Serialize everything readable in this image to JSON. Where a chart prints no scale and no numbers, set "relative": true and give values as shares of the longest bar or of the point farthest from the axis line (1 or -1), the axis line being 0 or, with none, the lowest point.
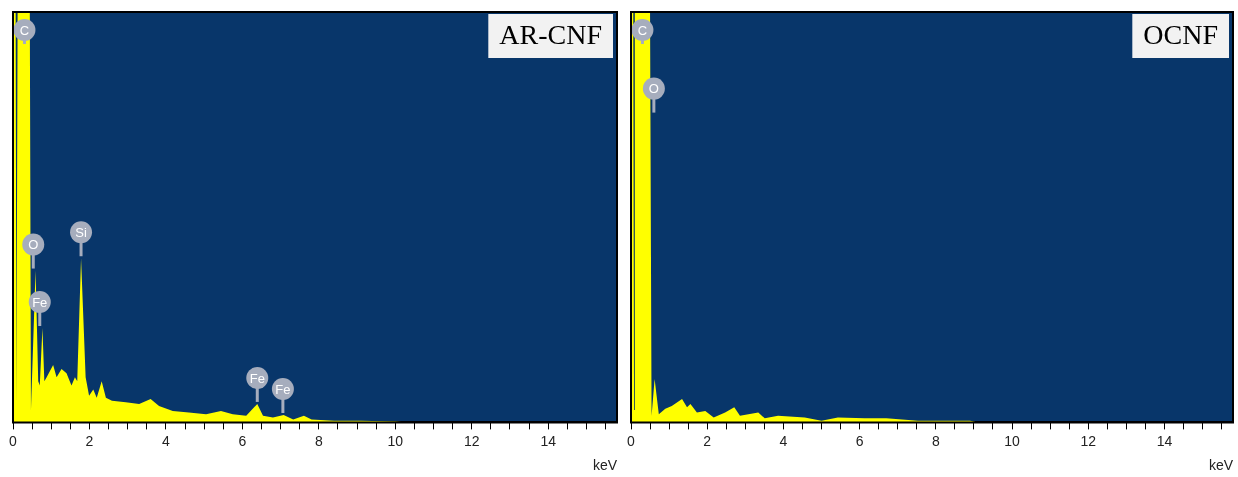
{
  "chart_data": [
    {
      "type": "area",
      "title": "AR-CNF",
      "xlabel": "keV",
      "relative": true,
      "legend": false,
      "grid": false,
      "xlim": [
        0,
        15.8
      ],
      "xticks": [
        0,
        {
          "value": 0.5,
          "label": null
        },
        {
          "value": 1,
          "label": null
        },
        {
          "value": 1.5,
          "label": null
        },
        2,
        {
          "value": 2.5,
          "label": null
        },
        {
          "value": 3,
          "label": null
        },
        {
          "value": 3.5,
          "label": null
        },
        4,
        {
          "value": 4.5,
          "label": null
        },
        {
          "value": 5,
          "label": null
        },
        {
          "value": 5.5,
          "label": null
        },
        6,
        {
          "value": 6.5,
          "label": null
        },
        {
          "value": 7,
          "label": null
        },
        {
          "value": 7.5,
          "label": null
        },
        8,
        {
          "value": 8.5,
          "label": null
        },
        {
          "value": 9,
          "label": null
        },
        {
          "value": 9.5,
          "label": null
        },
        10,
        {
          "value": 10.5,
          "label": null
        },
        {
          "value": 11,
          "label": null
        },
        {
          "value": 11.5,
          "label": null
        },
        12,
        {
          "value": 12.5,
          "label": null
        },
        {
          "value": 13,
          "label": null
        },
        {
          "value": 13.5,
          "label": null
        },
        14,
        {
          "value": 14.5,
          "label": null
        },
        {
          "value": 15,
          "label": null
        },
        {
          "value": 15.5,
          "label": null
        }
      ],
      "series": [
        {
          "color": "#ffff00",
          "x": [
            0,
            0.02,
            0.04,
            0.07,
            0.09,
            0.12,
            0.21,
            0.44,
            0.47,
            0.59,
            0.66,
            0.7,
            0.77,
            0.82,
            0.88,
            1.05,
            1.14,
            1.27,
            1.4,
            1.53,
            1.62,
            1.68,
            1.78,
            1.9,
            1.99,
            2.1,
            2.19,
            2.32,
            2.43,
            2.59,
            2.95,
            3.3,
            3.6,
            3.82,
            4.18,
            4.6,
            5.05,
            5.44,
            5.75,
            6.1,
            6.39,
            6.54,
            6.8,
            7.08,
            7.33,
            7.61,
            7.81,
            8.4,
            9.1,
            10,
            10.3,
            15.8
          ],
          "values": [
            0,
            1,
            1,
            1,
            0.05,
            1,
            1,
            1,
            0.03,
            0.37,
            0.1,
            0.09,
            0.23,
            0.1,
            0.11,
            0.14,
            0.11,
            0.13,
            0.12,
            0.09,
            0.11,
            0.1,
            0.4,
            0.11,
            0.065,
            0.08,
            0.06,
            0.1,
            0.06,
            0.053,
            0.049,
            0.045,
            0.057,
            0.04,
            0.028,
            0.024,
            0.02,
            0.028,
            0.02,
            0.016,
            0.045,
            0.016,
            0.012,
            0.018,
            0.007,
            0.016,
            0.007,
            0.004,
            0.004,
            0.002,
            0,
            0
          ]
        }
      ],
      "annotations": [
        {
          "text": "C",
          "x": 0.3,
          "y": 1
        },
        {
          "text": "O",
          "x": 0.53,
          "y": 0.37
        },
        {
          "text": "Fe",
          "x": 0.7,
          "y": 0.23
        },
        {
          "text": "Si",
          "x": 1.78,
          "y": 0.4
        },
        {
          "text": "Fe",
          "x": 6.39,
          "y": 0.045
        },
        {
          "text": "Fe",
          "x": 7.06,
          "y": 0.018
        }
      ]
    },
    {
      "type": "area",
      "title": "OCNF",
      "xlabel": "keV",
      "relative": true,
      "legend": false,
      "grid": false,
      "xlim": [
        0,
        15.8
      ],
      "xticks": [
        0,
        {
          "value": 0.5,
          "label": null
        },
        {
          "value": 1,
          "label": null
        },
        {
          "value": 1.5,
          "label": null
        },
        2,
        {
          "value": 2.5,
          "label": null
        },
        {
          "value": 3,
          "label": null
        },
        {
          "value": 3.5,
          "label": null
        },
        4,
        {
          "value": 4.5,
          "label": null
        },
        {
          "value": 5,
          "label": null
        },
        {
          "value": 5.5,
          "label": null
        },
        6,
        {
          "value": 6.5,
          "label": null
        },
        {
          "value": 7,
          "label": null
        },
        {
          "value": 7.5,
          "label": null
        },
        8,
        {
          "value": 8.5,
          "label": null
        },
        {
          "value": 9,
          "label": null
        },
        {
          "value": 9.5,
          "label": null
        },
        10,
        {
          "value": 10.5,
          "label": null
        },
        {
          "value": 11,
          "label": null
        },
        {
          "value": 11.5,
          "label": null
        },
        12,
        {
          "value": 12.5,
          "label": null
        },
        {
          "value": 13,
          "label": null
        },
        {
          "value": 13.5,
          "label": null
        },
        14,
        {
          "value": 14.5,
          "label": null
        },
        {
          "value": 15,
          "label": null
        },
        {
          "value": 15.5,
          "label": null
        }
      ],
      "series": [
        {
          "color": "#ffff00",
          "x": [
            0,
            0.02,
            0.06,
            0.08,
            0.1,
            0.5,
            0.54,
            0.62,
            0.73,
            0.9,
            1.07,
            1.34,
            1.47,
            1.56,
            1.73,
            1.95,
            2.17,
            2.47,
            2.71,
            2.86,
            3.34,
            3.51,
            3.86,
            4.56,
            5,
            5.43,
            6.13,
            6.7,
            7.53,
            8.9,
            9.1,
            15.8
          ],
          "values": [
            0,
            1,
            1,
            0.03,
            1,
            1,
            0.016,
            0.106,
            0.02,
            0.033,
            0.04,
            0.057,
            0.037,
            0.045,
            0.024,
            0.028,
            0.012,
            0.024,
            0.037,
            0.016,
            0.024,
            0.01,
            0.016,
            0.012,
            0.004,
            0.012,
            0.01,
            0.01,
            0.004,
            0.004,
            0,
            0
          ]
        }
      ],
      "annotations": [
        {
          "text": "C",
          "x": 0.3,
          "y": 1
        },
        {
          "text": "O",
          "x": 0.6,
          "y": 0.75
        }
      ]
    }
  ]
}
